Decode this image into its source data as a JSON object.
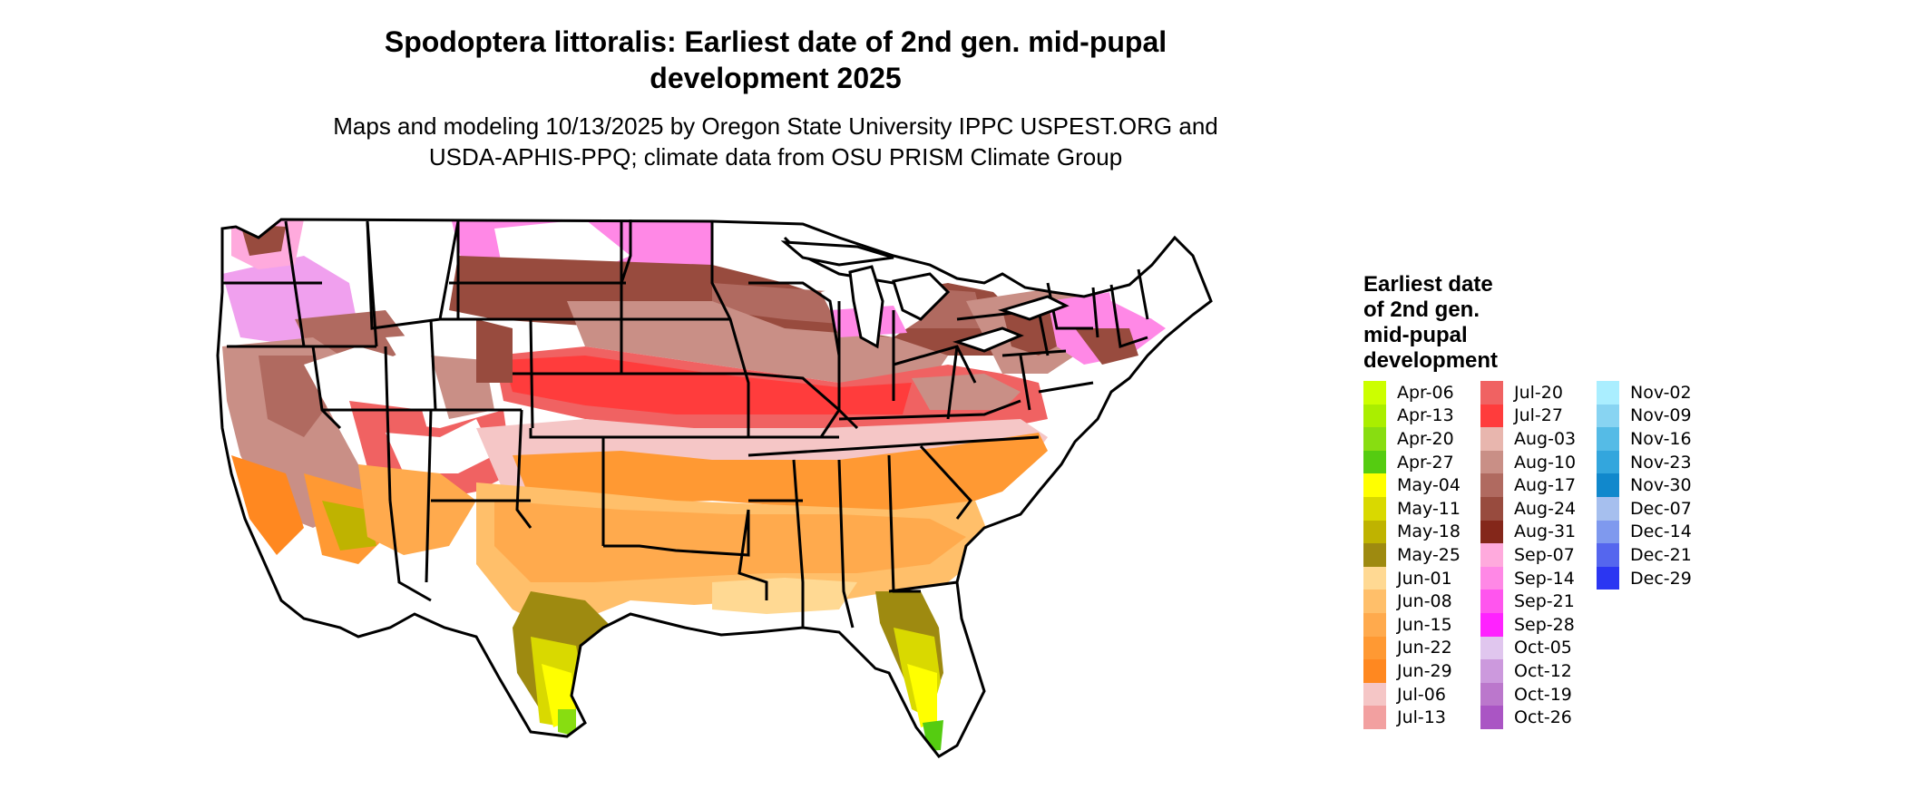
{
  "header": {
    "title_line1": "Spodoptera littoralis: Earliest date of 2nd gen. mid-pupal",
    "title_line2": "development 2025",
    "subtitle_line1": "Maps and modeling 10/13/2025 by Oregon State University IPPC USPEST.ORG and",
    "subtitle_line2": "USDA-APHIS-PPQ; climate data from OSU PRISM Climate Group"
  },
  "map": {
    "region": "Contiguous United States",
    "no_data_color": "#ffffff",
    "border_color": "#000000"
  },
  "legend": {
    "title_line1": "Earliest date",
    "title_line2": "of 2nd gen.",
    "title_line3": "mid-pupal",
    "title_line4": "development",
    "columns": [
      [
        {
          "label": "Apr-06",
          "color": "#ccff00"
        },
        {
          "label": "Apr-13",
          "color": "#aaee00"
        },
        {
          "label": "Apr-20",
          "color": "#88dd11"
        },
        {
          "label": "Apr-27",
          "color": "#55cc11"
        },
        {
          "label": "May-04",
          "color": "#ffff00"
        },
        {
          "label": "May-11",
          "color": "#d9d900"
        },
        {
          "label": "May-18",
          "color": "#bfb300"
        },
        {
          "label": "May-25",
          "color": "#9e8a10"
        },
        {
          "label": "Jun-01",
          "color": "#ffd993"
        },
        {
          "label": "Jun-08",
          "color": "#ffbf6a"
        },
        {
          "label": "Jun-15",
          "color": "#ffaa4d"
        },
        {
          "label": "Jun-22",
          "color": "#ff9933"
        },
        {
          "label": "Jun-29",
          "color": "#ff8820"
        },
        {
          "label": "Jul-06",
          "color": "#f5c6c6"
        },
        {
          "label": "Jul-13",
          "color": "#f2a0a0"
        }
      ],
      [
        {
          "label": "Jul-20",
          "color": "#f06262"
        },
        {
          "label": "Jul-27",
          "color": "#ff3c3c"
        },
        {
          "label": "Aug-03",
          "color": "#e8b6ae"
        },
        {
          "label": "Aug-10",
          "color": "#c98f86"
        },
        {
          "label": "Aug-17",
          "color": "#b06a60"
        },
        {
          "label": "Aug-24",
          "color": "#984b3e"
        },
        {
          "label": "Aug-31",
          "color": "#84271a"
        },
        {
          "label": "Sep-07",
          "color": "#ffaadd"
        },
        {
          "label": "Sep-14",
          "color": "#ff88e6"
        },
        {
          "label": "Sep-21",
          "color": "#ff55ee"
        },
        {
          "label": "Sep-28",
          "color": "#ff22ff"
        },
        {
          "label": "Oct-05",
          "color": "#e0c6ee"
        },
        {
          "label": "Oct-12",
          "color": "#cc99dd"
        },
        {
          "label": "Oct-19",
          "color": "#bb77cc"
        },
        {
          "label": "Oct-26",
          "color": "#aa55c4"
        }
      ],
      [
        {
          "label": "Nov-02",
          "color": "#aaeeff"
        },
        {
          "label": "Nov-09",
          "color": "#88d4f2"
        },
        {
          "label": "Nov-16",
          "color": "#55bbe6"
        },
        {
          "label": "Nov-23",
          "color": "#33a6dd"
        },
        {
          "label": "Nov-30",
          "color": "#1188cc"
        },
        {
          "label": "Dec-07",
          "color": "#a6bfee"
        },
        {
          "label": "Dec-14",
          "color": "#7f99ee"
        },
        {
          "label": "Dec-21",
          "color": "#5566ee"
        },
        {
          "label": "Dec-29",
          "color": "#2b36f2"
        }
      ]
    ]
  }
}
